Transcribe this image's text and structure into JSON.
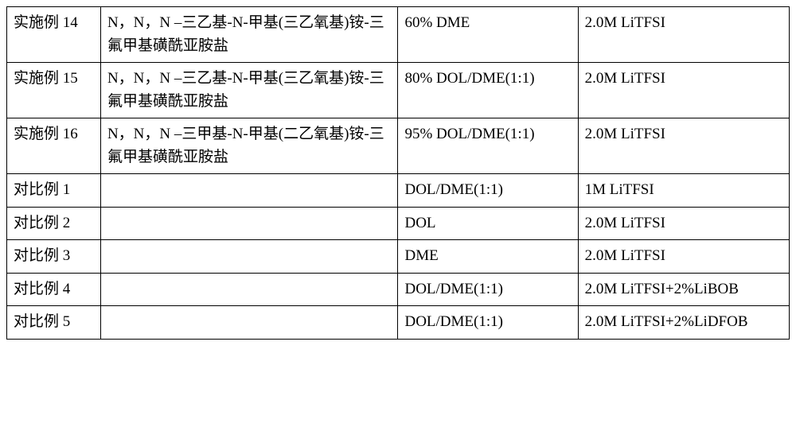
{
  "table": {
    "columns": [
      {
        "width": "12%"
      },
      {
        "width": "38%"
      },
      {
        "width": "23%"
      },
      {
        "width": "27%"
      }
    ],
    "font_family": "SimSun",
    "font_size": 19,
    "border_color": "#000000",
    "border_width": 1.5,
    "background_color": "#ffffff",
    "text_color": "#000000",
    "rows": [
      {
        "label": "实施例 14",
        "compound": "N，N，N –三乙基-N-甲基(三乙氧基)铵-三氟甲基磺酰亚胺盐",
        "solvent": "60% DME",
        "electrolyte": "2.0M LiTFSI"
      },
      {
        "label": "实施例 15",
        "compound": "N，N，N –三乙基-N-甲基(三乙氧基)铵-三氟甲基磺酰亚胺盐",
        "solvent": "80% DOL/DME(1:1)",
        "electrolyte": "2.0M LiTFSI"
      },
      {
        "label": "实施例 16",
        "compound": "N，N，N –三甲基-N-甲基(二乙氧基)铵-三氟甲基磺酰亚胺盐",
        "solvent": "95% DOL/DME(1:1)",
        "electrolyte": "2.0M LiTFSI"
      },
      {
        "label": "对比例 1",
        "compound": "",
        "solvent": "DOL/DME(1:1)",
        "electrolyte": "1M LiTFSI"
      },
      {
        "label": "对比例 2",
        "compound": "",
        "solvent": "DOL",
        "electrolyte": "2.0M LiTFSI"
      },
      {
        "label": "对比例 3",
        "compound": "",
        "solvent": "DME",
        "electrolyte": "2.0M LiTFSI"
      },
      {
        "label": "对比例 4",
        "compound": "",
        "solvent": "DOL/DME(1:1)",
        "electrolyte": "2.0M LiTFSI+2%LiBOB"
      },
      {
        "label": "对比例 5",
        "compound": "",
        "solvent": "DOL/DME(1:1)",
        "electrolyte": "2.0M LiTFSI+2%LiDFOB"
      }
    ]
  }
}
